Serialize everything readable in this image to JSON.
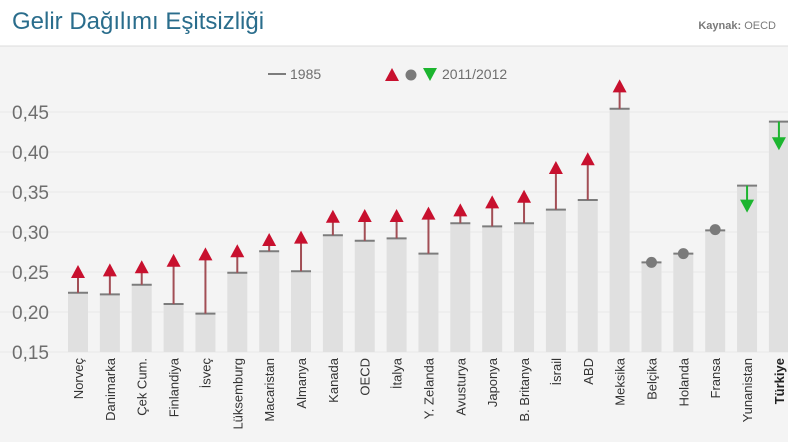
{
  "header": {
    "title": "Gelir Dağılımı Eşitsizliği",
    "source_label": "Kaynak:",
    "source_value": "OECD"
  },
  "legend": {
    "label_1985": "1985",
    "label_2011": "2011/2012"
  },
  "colors": {
    "bar": "#e0e0e0",
    "panel": "#f4f4f4",
    "stem": "#a24e55",
    "line1985": "#7c7c7c",
    "up": "#c8102e",
    "down": "#1cb52f",
    "dot": "#7a7a7a",
    "axis_text": "#6e6e6e"
  },
  "chart_data": {
    "type": "bar",
    "ylim": [
      0.15,
      0.46
    ],
    "yticks": [
      "0,15",
      "0,20",
      "0,25",
      "0,30",
      "0,35",
      "0,40",
      "0,45"
    ],
    "ytick_values": [
      0.15,
      0.2,
      0.25,
      0.3,
      0.35,
      0.4,
      0.45
    ],
    "legend_position": "top-center",
    "series": [
      {
        "name": "1985"
      },
      {
        "name": "2011/2012"
      }
    ],
    "categories": [
      "Norveç",
      "Danimarka",
      "Çek Cum.",
      "Finlandiya",
      "İsveç",
      "Lüksemburg",
      "Macaristan",
      "Almanya",
      "Kanada",
      "OECD",
      "İtalya",
      "Y. Zelanda",
      "Avusturya",
      "Japonya",
      "B. Britanya",
      "İsrail",
      "ABD",
      "Meksika",
      "Belçika",
      "Holanda",
      "Fransa",
      "Yunanistan",
      "Türkiye"
    ],
    "highlight_category": "Türkiye",
    "values_1985": [
      0.224,
      0.222,
      0.234,
      0.21,
      0.198,
      0.249,
      0.276,
      0.251,
      0.296,
      0.289,
      0.292,
      0.273,
      0.311,
      0.307,
      0.311,
      0.328,
      0.34,
      0.454,
      0.262,
      0.273,
      0.302,
      0.358,
      0.438
    ],
    "values_2011": [
      0.25,
      0.252,
      0.256,
      0.264,
      0.272,
      0.276,
      0.29,
      0.293,
      0.319,
      0.32,
      0.32,
      0.323,
      0.327,
      0.337,
      0.344,
      0.38,
      0.391,
      0.482,
      0.262,
      0.273,
      0.303,
      0.333,
      0.411
    ]
  }
}
